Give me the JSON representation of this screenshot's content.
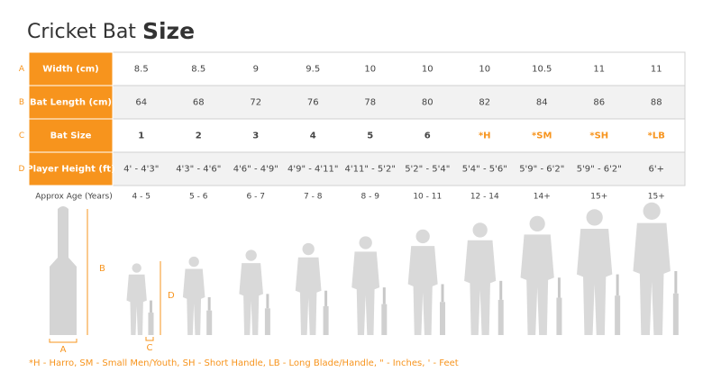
{
  "header": {
    "title": "Cricket Bat",
    "title_bold": "Size"
  },
  "table": {
    "row_letters": [
      "A",
      "B",
      "C",
      "D"
    ],
    "rows": [
      {
        "label": "Width (cm)",
        "values": [
          8.5,
          8.5,
          9,
          9.5,
          10,
          10,
          10,
          10.5,
          11,
          11
        ]
      },
      {
        "label": "Bat Length (cm)",
        "values": [
          64,
          68,
          72,
          76,
          78,
          80,
          82,
          84,
          86,
          88
        ]
      },
      {
        "label": "Bat Size",
        "values": [
          1,
          2,
          3,
          4,
          5,
          6,
          "*H",
          "*SM",
          "*SH",
          "*LB"
        ]
      },
      {
        "label": "Player Height (ft)",
        "values": [
          "4' - 4'3\"",
          "4'3\" - 4'6\"",
          "4'6\" - 4'9\"",
          "4'9\" - 4'11\"",
          "4'11\" - 5'2\"",
          "5'2\" - 5'4\"",
          "5'4\" - 5'6\"",
          "5'9\" - 6'2\"",
          "5'9\" - 6'2\"",
          "6'+"
        ]
      }
    ],
    "age": {
      "label": "Approx Age (Years)",
      "values": [
        "4 - 5",
        "5 - 6",
        "6 - 7",
        "7 - 8",
        "8 - 9",
        "10 - 11",
        "12 - 14",
        "14+",
        "15+",
        "15+"
      ]
    }
  },
  "diagram": {
    "labels": [
      "B",
      "D",
      "A",
      "C"
    ]
  },
  "footnote": "*H - Harro, SM - Small Men/Youth, SH - Short Handle,  LB - Long Blade/Handle, \" - Inches, ' - Feet"
}
